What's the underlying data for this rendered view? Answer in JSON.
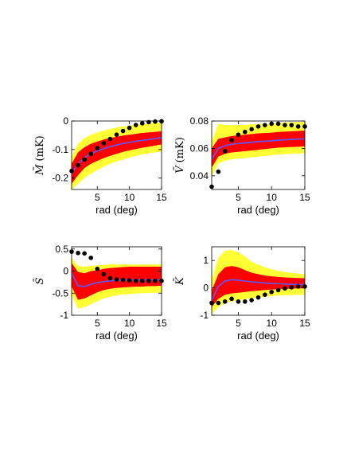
{
  "chart_data": [
    {
      "type": "line",
      "panel": "top-left",
      "ylabel": "M̄",
      "yunit": "(mK)",
      "xlabel": "rad (deg)",
      "xlim": [
        1,
        15
      ],
      "ylim": [
        -0.24,
        0
      ],
      "xticks": [
        "5",
        "10",
        "15"
      ],
      "xtick_values": [
        5,
        10,
        15
      ],
      "yticks": [
        "-0.2",
        "-0.1",
        "0"
      ],
      "ytick_values": [
        -0.2,
        -0.1,
        0
      ],
      "band_colors": {
        "outer": "#ffff33",
        "inner": "#ff0000",
        "mean": "#5a5aff",
        "points": "#000000"
      },
      "x": [
        1,
        2,
        3,
        4,
        5,
        6,
        7,
        8,
        9,
        10,
        11,
        12,
        13,
        14,
        15
      ],
      "mean": [
        -0.185,
        -0.15,
        -0.128,
        -0.115,
        -0.105,
        -0.097,
        -0.09,
        -0.084,
        -0.079,
        -0.075,
        -0.071,
        -0.068,
        -0.065,
        -0.062,
        -0.058
      ],
      "inner_lo": [
        -0.22,
        -0.19,
        -0.165,
        -0.15,
        -0.14,
        -0.13,
        -0.122,
        -0.115,
        -0.108,
        -0.103,
        -0.098,
        -0.094,
        -0.09,
        -0.086,
        -0.082
      ],
      "inner_hi": [
        -0.15,
        -0.11,
        -0.092,
        -0.08,
        -0.072,
        -0.065,
        -0.06,
        -0.055,
        -0.051,
        -0.048,
        -0.045,
        -0.042,
        -0.04,
        -0.038,
        -0.036
      ],
      "outer_lo": [
        -0.24,
        -0.22,
        -0.2,
        -0.185,
        -0.172,
        -0.16,
        -0.15,
        -0.142,
        -0.135,
        -0.128,
        -0.122,
        -0.117,
        -0.113,
        -0.11,
        -0.107
      ],
      "outer_hi": [
        -0.125,
        -0.08,
        -0.06,
        -0.048,
        -0.04,
        -0.034,
        -0.028,
        -0.023,
        -0.019,
        -0.016,
        -0.013,
        -0.01,
        -0.008,
        -0.006,
        -0.005
      ],
      "points": [
        -0.175,
        -0.155,
        -0.135,
        -0.115,
        -0.095,
        -0.078,
        -0.063,
        -0.048,
        -0.035,
        -0.024,
        -0.014,
        -0.008,
        -0.004,
        -0.002,
        -0.001
      ]
    },
    {
      "type": "line",
      "panel": "top-right",
      "ylabel": "V̄",
      "yunit": "(mK)",
      "xlabel": "rad (deg)",
      "xlim": [
        1,
        15
      ],
      "ylim": [
        0.03,
        0.08
      ],
      "xticks": [
        "5",
        "10",
        "15"
      ],
      "xtick_values": [
        5,
        10,
        15
      ],
      "yticks": [
        "0.04",
        "0.06",
        "0.08"
      ],
      "ytick_values": [
        0.04,
        0.06,
        0.08
      ],
      "band_colors": {
        "outer": "#ffff33",
        "inner": "#ff0000",
        "mean": "#5a5aff",
        "points": "#000000"
      },
      "x": [
        1,
        2,
        3,
        4,
        5,
        6,
        7,
        8,
        9,
        10,
        11,
        12,
        13,
        14,
        15
      ],
      "mean": [
        0.052,
        0.06,
        0.062,
        0.063,
        0.0635,
        0.064,
        0.0645,
        0.065,
        0.0652,
        0.0655,
        0.066,
        0.0663,
        0.0665,
        0.0668,
        0.067
      ],
      "inner_lo": [
        0.046,
        0.054,
        0.056,
        0.057,
        0.0575,
        0.058,
        0.0585,
        0.059,
        0.0595,
        0.06,
        0.0605,
        0.0608,
        0.061,
        0.0612,
        0.0615
      ],
      "inner_hi": [
        0.06,
        0.067,
        0.068,
        0.069,
        0.0695,
        0.07,
        0.0705,
        0.071,
        0.0712,
        0.0715,
        0.072,
        0.0722,
        0.0725,
        0.0727,
        0.073
      ],
      "outer_lo": [
        0.04,
        0.049,
        0.051,
        0.052,
        0.0525,
        0.053,
        0.0535,
        0.054,
        0.0545,
        0.055,
        0.0555,
        0.0558,
        0.056,
        0.0562,
        0.0565
      ],
      "outer_hi": [
        0.065,
        0.078,
        0.077,
        0.077,
        0.077,
        0.0772,
        0.0775,
        0.0778,
        0.078,
        0.0782,
        0.0785,
        0.0788,
        0.079,
        0.0792,
        0.0795
      ],
      "points": [
        0.032,
        0.043,
        0.058,
        0.066,
        0.07,
        0.072,
        0.074,
        0.076,
        0.077,
        0.078,
        0.078,
        0.077,
        0.077,
        0.076,
        0.076
      ]
    },
    {
      "type": "line",
      "panel": "bottom-left",
      "ylabel": "S̄",
      "yunit": "",
      "xlabel": "rad (deg)",
      "xlim": [
        1,
        15
      ],
      "ylim": [
        -1,
        0.55
      ],
      "xticks": [
        "5",
        "10",
        "15"
      ],
      "xtick_values": [
        5,
        10,
        15
      ],
      "yticks": [
        "-1",
        "-0.5",
        "0",
        "0.5"
      ],
      "ytick_values": [
        -1,
        -0.5,
        0,
        0.5
      ],
      "band_colors": {
        "outer": "#ffff33",
        "inner": "#ff0000",
        "mean": "#5a5aff",
        "points": "#000000"
      },
      "x": [
        1,
        2,
        3,
        4,
        5,
        6,
        7,
        8,
        9,
        10,
        11,
        12,
        13,
        14,
        15
      ],
      "mean": [
        -0.05,
        -0.33,
        -0.35,
        -0.3,
        -0.26,
        -0.24,
        -0.22,
        -0.21,
        -0.2,
        -0.2,
        -0.2,
        -0.2,
        -0.2,
        -0.2,
        -0.2
      ],
      "inner_lo": [
        -0.35,
        -0.65,
        -0.62,
        -0.55,
        -0.48,
        -0.43,
        -0.4,
        -0.38,
        -0.37,
        -0.36,
        -0.35,
        -0.35,
        -0.34,
        -0.34,
        -0.33
      ],
      "inner_hi": [
        0.18,
        -0.02,
        -0.05,
        0.0,
        0.02,
        0.05,
        0.07,
        0.08,
        0.09,
        0.1,
        0.1,
        0.1,
        0.1,
        0.1,
        0.1
      ],
      "outer_lo": [
        -0.55,
        -0.85,
        -0.82,
        -0.75,
        -0.68,
        -0.62,
        -0.58,
        -0.55,
        -0.53,
        -0.52,
        -0.51,
        -0.5,
        -0.5,
        -0.49,
        -0.49
      ],
      "outer_hi": [
        0.3,
        0.12,
        0.1,
        0.12,
        0.13,
        0.14,
        0.15,
        0.15,
        0.15,
        0.15,
        0.15,
        0.15,
        0.15,
        0.15,
        0.15
      ],
      "points": [
        0.44,
        0.41,
        0.4,
        0.3,
        0.05,
        -0.07,
        -0.16,
        -0.19,
        -0.2,
        -0.21,
        -0.22,
        -0.22,
        -0.22,
        -0.22,
        -0.22
      ]
    },
    {
      "type": "line",
      "panel": "bottom-right",
      "ylabel": "K̄",
      "yunit": "",
      "xlabel": "rad (deg)",
      "xlim": [
        1,
        15
      ],
      "ylim": [
        -1,
        1.5
      ],
      "xticks": [
        "5",
        "10",
        "15"
      ],
      "xtick_values": [
        5,
        10,
        15
      ],
      "yticks": [
        "-1",
        "0",
        "1"
      ],
      "ytick_values": [
        -1,
        0,
        1
      ],
      "band_colors": {
        "outer": "#ffff33",
        "inner": "#ff0000",
        "mean": "#5a5aff",
        "points": "#000000"
      },
      "x": [
        1,
        2,
        3,
        4,
        5,
        6,
        7,
        8,
        9,
        10,
        11,
        12,
        13,
        14,
        15
      ],
      "mean": [
        -0.45,
        0.05,
        0.25,
        0.3,
        0.28,
        0.25,
        0.22,
        0.2,
        0.18,
        0.16,
        0.15,
        0.14,
        0.13,
        0.12,
        0.12
      ],
      "inner_lo": [
        -0.7,
        -0.4,
        -0.25,
        -0.2,
        -0.18,
        -0.15,
        -0.12,
        -0.1,
        -0.08,
        -0.06,
        -0.05,
        -0.04,
        -0.03,
        -0.02,
        -0.02
      ],
      "inner_hi": [
        -0.1,
        0.5,
        0.75,
        0.8,
        0.75,
        0.65,
        0.55,
        0.5,
        0.45,
        0.42,
        0.4,
        0.38,
        0.37,
        0.36,
        0.35
      ],
      "outer_lo": [
        -0.95,
        -0.7,
        -0.55,
        -0.5,
        -0.45,
        -0.42,
        -0.38,
        -0.35,
        -0.33,
        -0.3,
        -0.28,
        -0.27,
        -0.26,
        -0.25,
        -0.25
      ],
      "outer_hi": [
        0.3,
        1.1,
        1.35,
        1.38,
        1.3,
        1.15,
        0.95,
        0.85,
        0.75,
        0.68,
        0.62,
        0.58,
        0.55,
        0.52,
        0.5
      ],
      "points": [
        -0.55,
        -0.55,
        -0.5,
        -0.4,
        -0.5,
        -0.5,
        -0.45,
        -0.35,
        -0.25,
        -0.15,
        -0.08,
        -0.02,
        0.02,
        0.05,
        0.05
      ]
    }
  ]
}
